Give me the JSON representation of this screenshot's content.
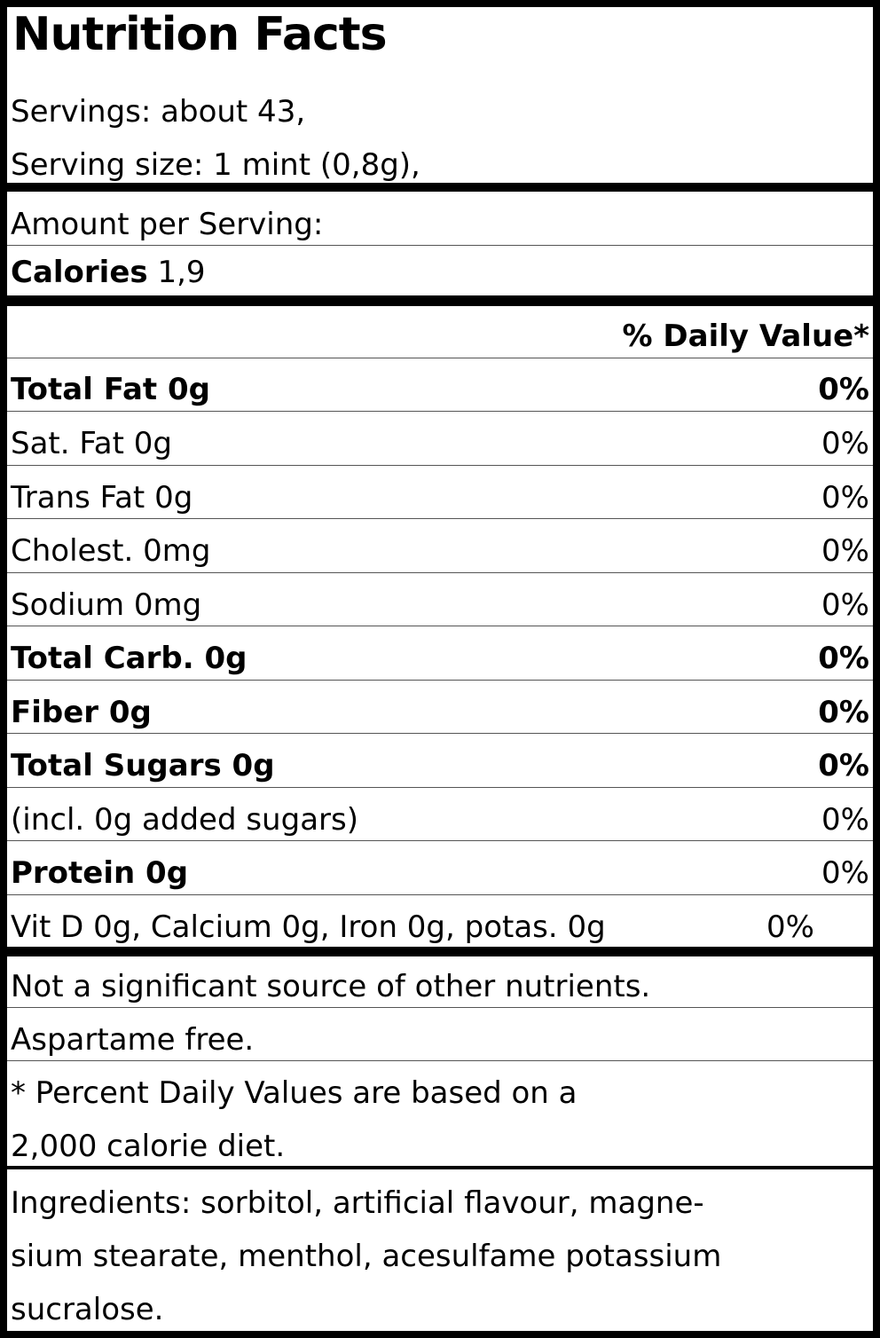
{
  "header": {
    "title": "Nutrition Facts",
    "servings": "Servings: about 43,",
    "serving_size": "Serving size: 1 mint (0,8g),"
  },
  "amount": {
    "label": "Amount per Serving:",
    "calories_label": "Calories",
    "calories_value": " 1,9"
  },
  "daily_value_header": "% Daily Value*",
  "nutrients": [
    {
      "name": "Total Fat 0g",
      "pct": "0%"
    },
    {
      "name": "Sat. Fat 0g",
      "pct": "0%"
    },
    {
      "name": "Trans Fat 0g",
      "pct": "0%"
    },
    {
      "name": "Cholest. 0mg",
      "pct": "0%"
    },
    {
      "name": "Sodium 0mg",
      "pct": "0%"
    },
    {
      "name": "Total Carb. 0g",
      "pct": "0%"
    },
    {
      "name": "Fiber 0g",
      "pct": "0%"
    },
    {
      "name": "Total Sugars 0g",
      "pct": "0%"
    },
    {
      "name": "(incl. 0g added sugars)",
      "pct": "0%"
    },
    {
      "name": "Protein 0g",
      "pct": "0%"
    }
  ],
  "vitamins": {
    "text": "Vit D 0g, Calcium 0g, Iron 0g, potas. 0g",
    "pct": "0%"
  },
  "notes": {
    "line1": "Not a significant source of other nutrients.",
    "line2": "Aspartame free.",
    "line3a": "* Percent Daily Values are based on a",
    "line3b": "2,000 calorie diet."
  },
  "ingredients": {
    "line1": "Ingredients: sorbitol, artificial flavour, magne-",
    "line2": "sium stearate, menthol, acesulfame potassium",
    "line3": "sucralose."
  },
  "colors": {
    "text": "#000000",
    "background": "#ffffff"
  }
}
